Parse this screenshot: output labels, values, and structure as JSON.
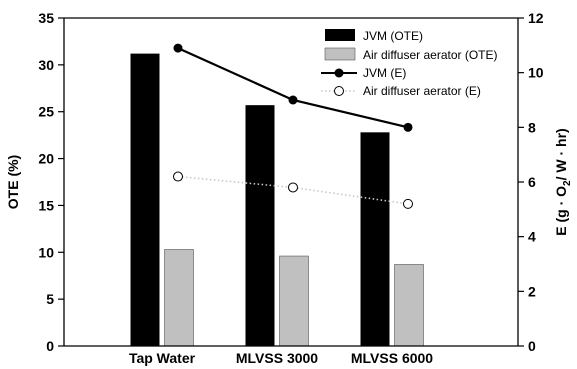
{
  "chart_data": {
    "type": "bar+line",
    "categories": [
      "Tap Water",
      "MLVSS 3000",
      "MLVSS 6000"
    ],
    "left_axis": {
      "label": "OTE (%)",
      "range": [
        0,
        35
      ],
      "ticks": [
        0,
        5,
        10,
        15,
        20,
        25,
        30,
        35
      ]
    },
    "right_axis": {
      "label_prefix": "E (g",
      "label_o": "O",
      "label_sub": "2",
      "label_suffix": "/ W",
      "label_end": "hr)",
      "range": [
        0,
        12
      ],
      "ticks": [
        0,
        2,
        4,
        6,
        8,
        10,
        12
      ]
    },
    "series": [
      {
        "name": "JVM (OTE)",
        "kind": "bar",
        "axis": "left",
        "color": "#000000",
        "values": [
          31.2,
          25.7,
          22.8
        ]
      },
      {
        "name": "Air diffuser aerator (OTE)",
        "kind": "bar",
        "axis": "left",
        "color": "#c0c0c0",
        "values": [
          10.3,
          9.6,
          8.7
        ]
      },
      {
        "name": "JVM (E)",
        "kind": "line",
        "axis": "right",
        "color": "#000000",
        "marker": "filled-circle",
        "values": [
          10.9,
          9.0,
          8.0
        ]
      },
      {
        "name": "Air diffuser aerator (E)",
        "kind": "line",
        "axis": "right",
        "color": "#c8c8c8",
        "line_style": "dotted",
        "marker": "open-circle",
        "values": [
          6.2,
          5.8,
          5.2
        ]
      }
    ],
    "legend_position": "top-right",
    "grid": false
  }
}
